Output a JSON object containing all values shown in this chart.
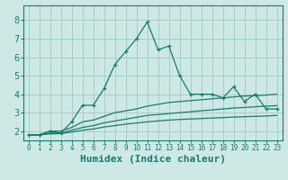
{
  "xlabel": "Humidex (Indice chaleur)",
  "ylabel": "",
  "xlim": [
    -0.5,
    23.5
  ],
  "ylim": [
    1.5,
    8.8
  ],
  "xticks": [
    0,
    1,
    2,
    3,
    4,
    5,
    6,
    7,
    8,
    9,
    10,
    11,
    12,
    13,
    14,
    15,
    16,
    17,
    18,
    19,
    20,
    21,
    22,
    23
  ],
  "yticks": [
    2,
    3,
    4,
    5,
    6,
    7,
    8
  ],
  "background_color": "#cde8e5",
  "grid_color": "#a8ceca",
  "line_color": "#1a7a6e",
  "series": [
    {
      "x": [
        0,
        1,
        2,
        3,
        4,
        5,
        6,
        7,
        8,
        9,
        10,
        11,
        12,
        13,
        14,
        15,
        16,
        17,
        18,
        19,
        20,
        21,
        22,
        23
      ],
      "y": [
        1.8,
        1.8,
        2.0,
        1.9,
        2.5,
        3.4,
        3.4,
        4.3,
        5.6,
        6.3,
        7.0,
        7.9,
        6.4,
        6.6,
        5.0,
        4.0,
        4.0,
        4.0,
        3.8,
        4.4,
        3.6,
        4.0,
        3.2,
        3.2
      ],
      "style": "-",
      "marker": "+"
    },
    {
      "x": [
        0,
        1,
        2,
        3,
        4,
        5,
        6,
        7,
        8,
        9,
        10,
        11,
        12,
        13,
        14,
        15,
        16,
        17,
        18,
        19,
        20,
        21,
        22,
        23
      ],
      "y": [
        1.8,
        1.8,
        2.0,
        2.0,
        2.2,
        2.5,
        2.6,
        2.8,
        3.0,
        3.1,
        3.2,
        3.35,
        3.45,
        3.55,
        3.6,
        3.65,
        3.7,
        3.75,
        3.8,
        3.85,
        3.9,
        3.92,
        3.95,
        4.0
      ],
      "style": "-",
      "marker": null
    },
    {
      "x": [
        0,
        1,
        2,
        3,
        4,
        5,
        6,
        7,
        8,
        9,
        10,
        11,
        12,
        13,
        14,
        15,
        16,
        17,
        18,
        19,
        20,
        21,
        22,
        23
      ],
      "y": [
        1.8,
        1.8,
        1.9,
        1.9,
        2.05,
        2.2,
        2.3,
        2.45,
        2.55,
        2.65,
        2.75,
        2.85,
        2.9,
        2.95,
        3.0,
        3.05,
        3.1,
        3.15,
        3.2,
        3.25,
        3.28,
        3.32,
        3.35,
        3.38
      ],
      "style": "-",
      "marker": null
    },
    {
      "x": [
        0,
        1,
        2,
        3,
        4,
        5,
        6,
        7,
        8,
        9,
        10,
        11,
        12,
        13,
        14,
        15,
        16,
        17,
        18,
        19,
        20,
        21,
        22,
        23
      ],
      "y": [
        1.8,
        1.8,
        1.85,
        1.87,
        1.95,
        2.05,
        2.12,
        2.22,
        2.3,
        2.38,
        2.44,
        2.5,
        2.55,
        2.6,
        2.63,
        2.66,
        2.68,
        2.71,
        2.73,
        2.76,
        2.78,
        2.8,
        2.82,
        2.85
      ],
      "style": "-",
      "marker": null
    }
  ],
  "title_fontsize": 8,
  "tick_fontsize": 6,
  "label_fontsize": 8
}
